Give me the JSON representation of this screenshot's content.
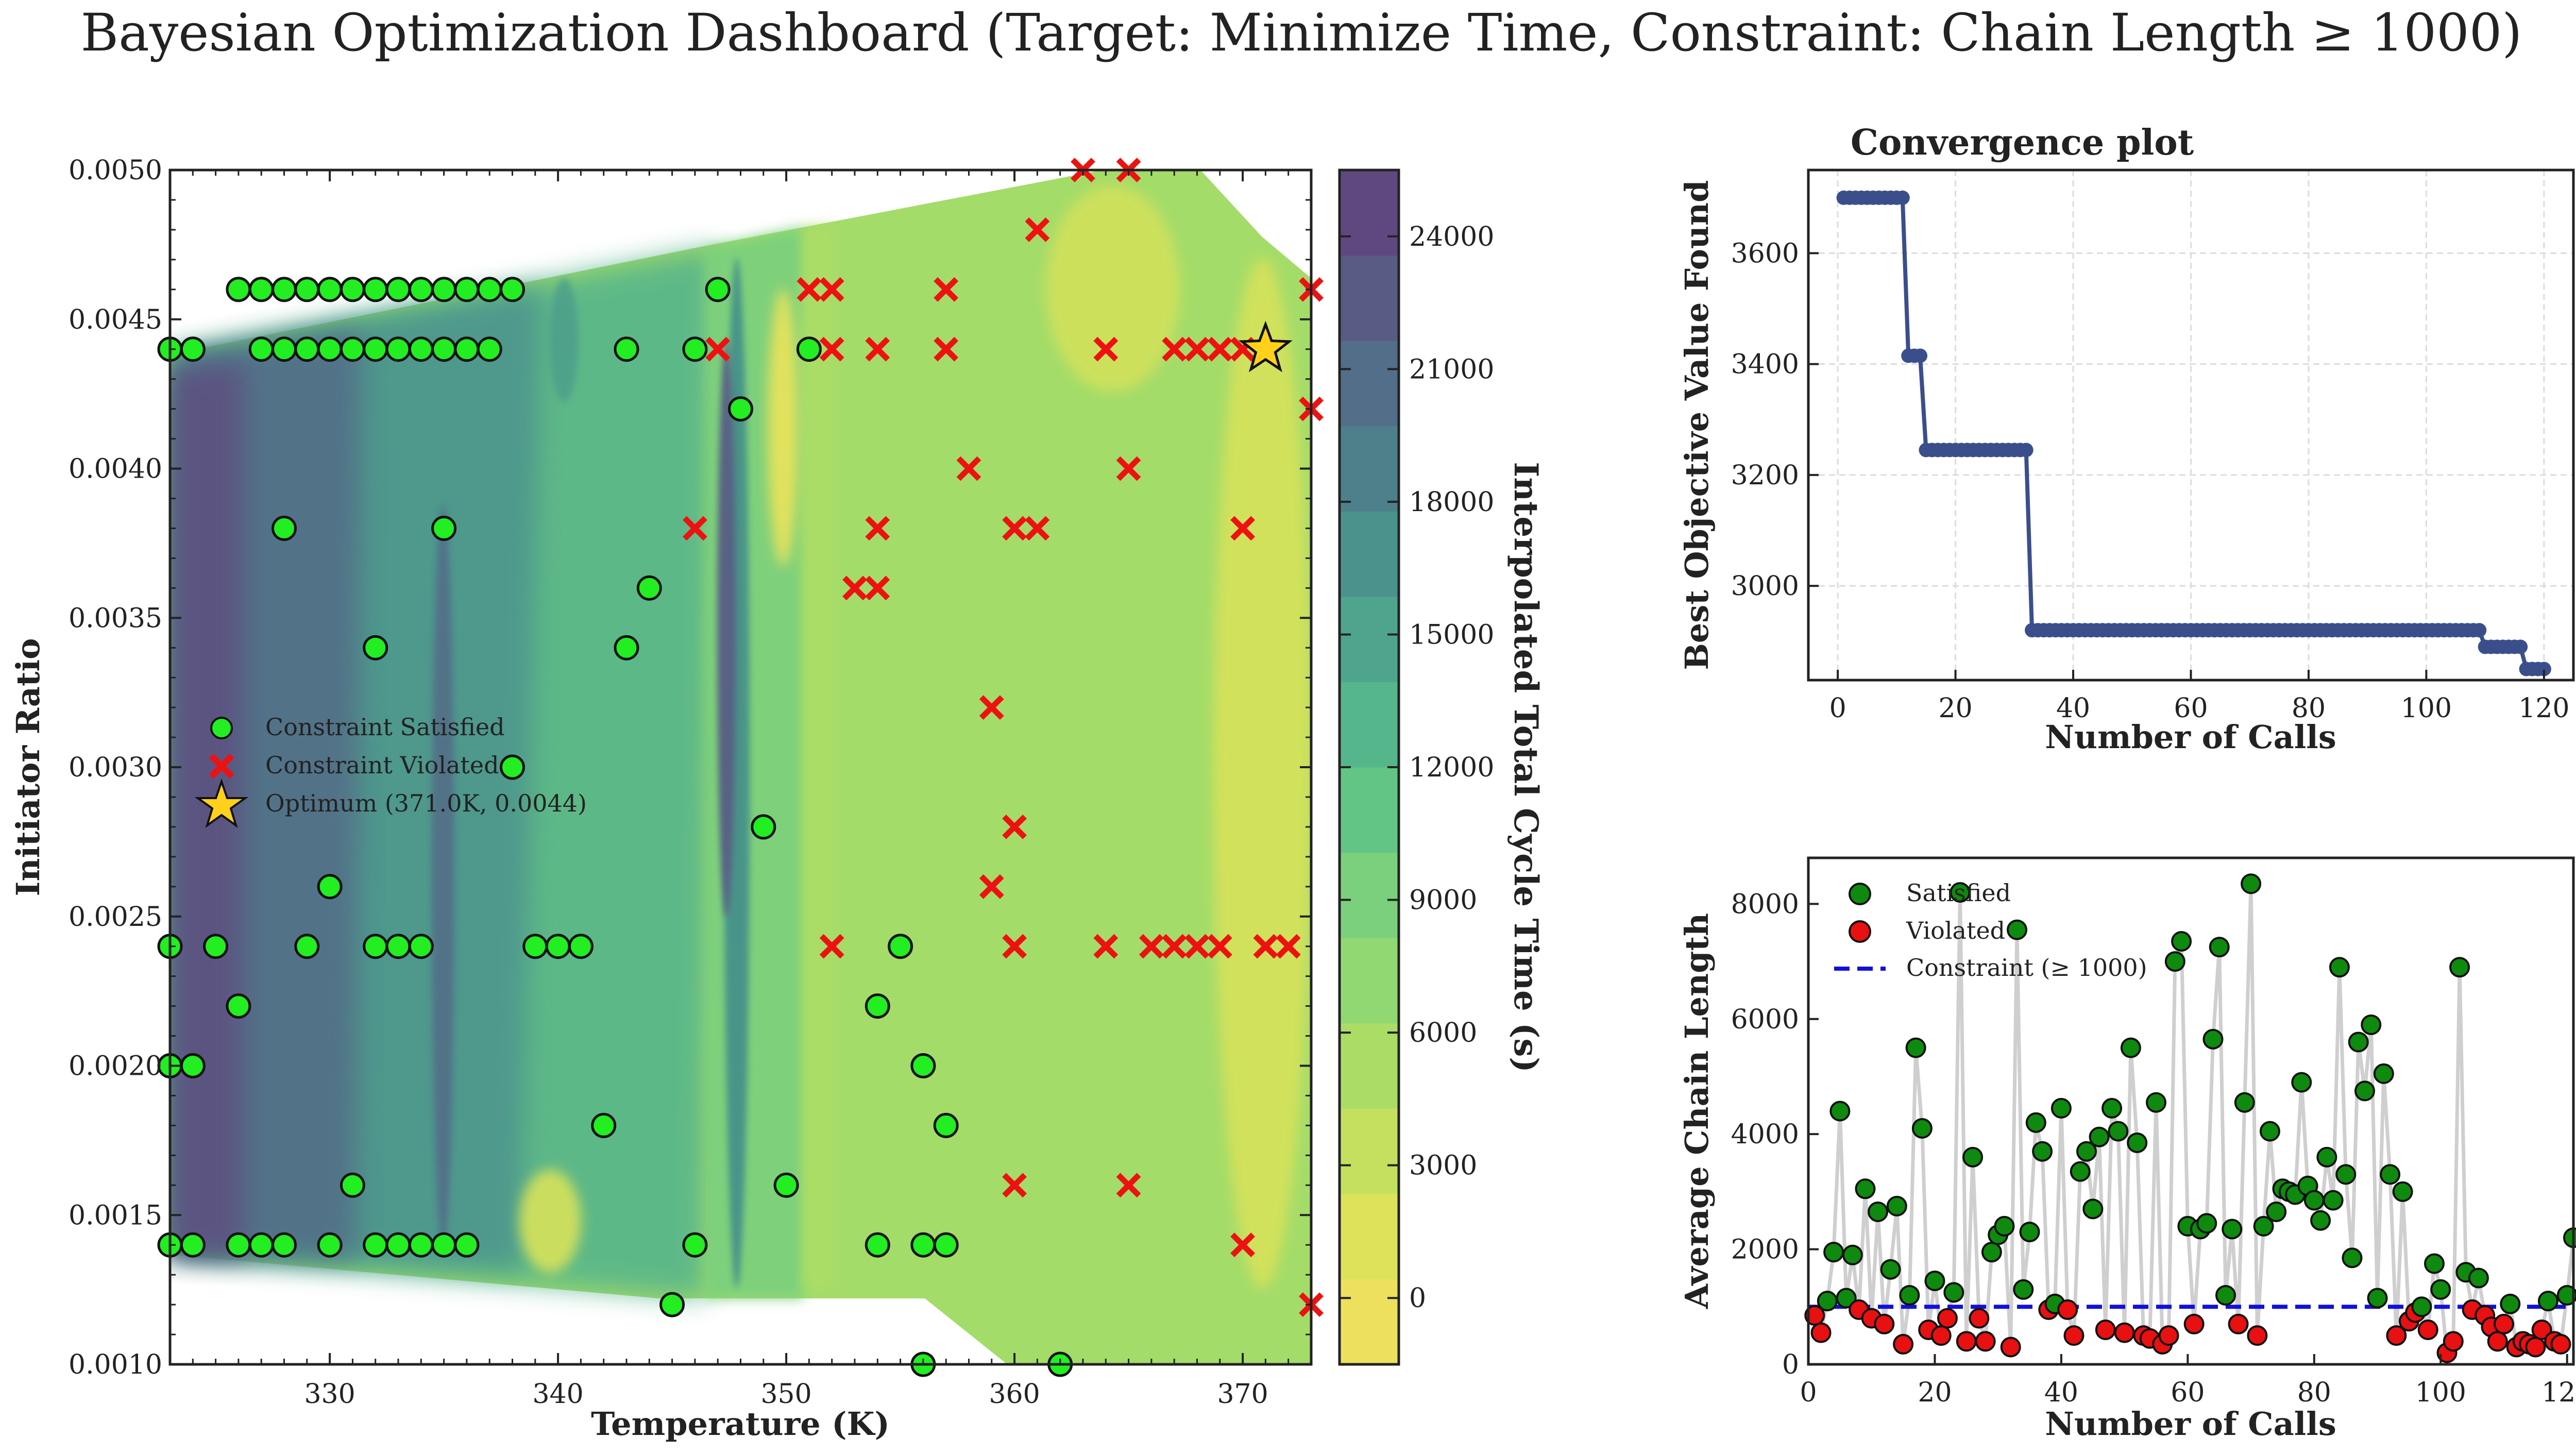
{
  "suptitle": "Bayesian Optimization Dashboard (Target: Minimize Time, Constraint: Chain Length ≥ 1000)",
  "colors": {
    "satisfied_green": "#22ee22",
    "violated_red": "#ee1111",
    "star_gold": "#ffd11a",
    "convergence_line": "#3b4e8c",
    "chain_green": "#0e8a0e",
    "chain_red": "#e81010",
    "constraint_blue": "#1010dd",
    "trace_gray": "#cfcfcf",
    "grid_gray": "#dcdcdc"
  },
  "chart_data": [
    {
      "id": "contour",
      "type": "contour-scatter",
      "xlabel": "Temperature (K)",
      "ylabel": "Initiator Ratio",
      "xlim": [
        323,
        373
      ],
      "ylim": [
        0.001,
        0.005
      ],
      "xticks": [
        330,
        340,
        350,
        360,
        370
      ],
      "xtick_labels": [
        "330",
        "340",
        "350",
        "360",
        "370"
      ],
      "yticks": [
        0.001,
        0.0015,
        0.002,
        0.0025,
        0.003,
        0.0035,
        0.004,
        0.0045,
        0.005
      ],
      "ytick_labels": [
        "0.0010",
        "0.0015",
        "0.0020",
        "0.0025",
        "0.0030",
        "0.0035",
        "0.0040",
        "0.0045",
        "0.0050"
      ],
      "colorbar": {
        "label": "Interpolated Total Cycle Time (s)",
        "range": [
          -1500,
          25500
        ],
        "ticks": [
          0,
          3000,
          6000,
          9000,
          12000,
          15000,
          18000,
          21000,
          24000
        ],
        "tick_labels": [
          "0",
          "3000",
          "6000",
          "9000",
          "12000",
          "15000",
          "18000",
          "21000",
          "24000"
        ],
        "levels": [
          "#ede05c",
          "#dde25a",
          "#c4e05e",
          "#abdd66",
          "#92d872",
          "#7ad07d",
          "#62c585",
          "#55b68b",
          "#4ea48c",
          "#4b928d",
          "#4d808b",
          "#526e88",
          "#585b84",
          "#5f487f"
        ]
      },
      "legend": {
        "entries": [
          "Constraint Satisfied",
          "Constraint Violated",
          "Optimum (371.0K, 0.0044)"
        ],
        "position": "center-left"
      },
      "satisfied_points": [
        [
          323,
          0.0044
        ],
        [
          324,
          0.0044
        ],
        [
          323,
          0.0024
        ],
        [
          323,
          0.002
        ],
        [
          324,
          0.002
        ],
        [
          323,
          0.0014
        ],
        [
          324,
          0.0014
        ],
        [
          326,
          0.0046
        ],
        [
          327,
          0.0046
        ],
        [
          328,
          0.0046
        ],
        [
          329,
          0.0046
        ],
        [
          330,
          0.0046
        ],
        [
          331,
          0.0046
        ],
        [
          332,
          0.0046
        ],
        [
          333,
          0.0046
        ],
        [
          334,
          0.0046
        ],
        [
          335,
          0.0046
        ],
        [
          336,
          0.0046
        ],
        [
          337,
          0.0046
        ],
        [
          338,
          0.0046
        ],
        [
          327,
          0.0044
        ],
        [
          328,
          0.0044
        ],
        [
          329,
          0.0044
        ],
        [
          330,
          0.0044
        ],
        [
          331,
          0.0044
        ],
        [
          332,
          0.0044
        ],
        [
          333,
          0.0044
        ],
        [
          334,
          0.0044
        ],
        [
          335,
          0.0044
        ],
        [
          336,
          0.0044
        ],
        [
          337,
          0.0044
        ],
        [
          328,
          0.0038
        ],
        [
          335,
          0.0038
        ],
        [
          332,
          0.0034
        ],
        [
          338,
          0.003
        ],
        [
          330,
          0.0026
        ],
        [
          326,
          0.0022
        ],
        [
          325,
          0.0024
        ],
        [
          329,
          0.0024
        ],
        [
          332,
          0.0024
        ],
        [
          333,
          0.0024
        ],
        [
          334,
          0.0024
        ],
        [
          339,
          0.0024
        ],
        [
          340,
          0.0024
        ],
        [
          341,
          0.0024
        ],
        [
          331,
          0.0016
        ],
        [
          326,
          0.0014
        ],
        [
          327,
          0.0014
        ],
        [
          328,
          0.0014
        ],
        [
          330,
          0.0014
        ],
        [
          332,
          0.0014
        ],
        [
          333,
          0.0014
        ],
        [
          334,
          0.0014
        ],
        [
          335,
          0.0014
        ],
        [
          336,
          0.0014
        ],
        [
          343,
          0.0044
        ],
        [
          346,
          0.0044
        ],
        [
          347,
          0.0046
        ],
        [
          348,
          0.0042
        ],
        [
          351,
          0.0044
        ],
        [
          344,
          0.0036
        ],
        [
          343,
          0.0034
        ],
        [
          349,
          0.0028
        ],
        [
          342,
          0.0018
        ],
        [
          350,
          0.0016
        ],
        [
          346,
          0.0014
        ],
        [
          345,
          0.0012
        ],
        [
          354,
          0.0022
        ],
        [
          355,
          0.0024
        ],
        [
          356,
          0.002
        ],
        [
          357,
          0.0018
        ],
        [
          354,
          0.0014
        ],
        [
          356,
          0.0014
        ],
        [
          357,
          0.0014
        ],
        [
          356,
          0.001
        ],
        [
          362,
          0.001
        ]
      ],
      "violated_points": [
        [
          351,
          0.0046
        ],
        [
          352,
          0.0046
        ],
        [
          357,
          0.0046
        ],
        [
          361,
          0.0048
        ],
        [
          363,
          0.005
        ],
        [
          365,
          0.005
        ],
        [
          347,
          0.0044
        ],
        [
          352,
          0.0044
        ],
        [
          354,
          0.0044
        ],
        [
          357,
          0.0044
        ],
        [
          364,
          0.0044
        ],
        [
          367,
          0.0044
        ],
        [
          368,
          0.0044
        ],
        [
          369,
          0.0044
        ],
        [
          370,
          0.0044
        ],
        [
          373,
          0.0046
        ],
        [
          373,
          0.0042
        ],
        [
          358,
          0.004
        ],
        [
          365,
          0.004
        ],
        [
          346,
          0.0038
        ],
        [
          354,
          0.0038
        ],
        [
          360,
          0.0038
        ],
        [
          361,
          0.0038
        ],
        [
          370,
          0.0038
        ],
        [
          353,
          0.0036
        ],
        [
          354,
          0.0036
        ],
        [
          359,
          0.0032
        ],
        [
          360,
          0.0028
        ],
        [
          359,
          0.0026
        ],
        [
          352,
          0.0024
        ],
        [
          360,
          0.0024
        ],
        [
          364,
          0.0024
        ],
        [
          366,
          0.0024
        ],
        [
          367,
          0.0024
        ],
        [
          368,
          0.0024
        ],
        [
          369,
          0.0024
        ],
        [
          371,
          0.0024
        ],
        [
          372,
          0.0024
        ],
        [
          360,
          0.0016
        ],
        [
          365,
          0.0016
        ],
        [
          370,
          0.0014
        ],
        [
          373,
          0.0012
        ]
      ],
      "optimum": [
        371.0,
        0.0044
      ]
    },
    {
      "id": "convergence",
      "type": "line",
      "title": "Convergence plot",
      "xlabel": "Number of Calls",
      "ylabel": "Best Objective Value Found",
      "xlim": [
        -5,
        125
      ],
      "ylim": [
        2830,
        3750
      ],
      "xticks": [
        0,
        20,
        40,
        60,
        80,
        100,
        120
      ],
      "xtick_labels": [
        "0",
        "20",
        "40",
        "60",
        "80",
        "100",
        "120"
      ],
      "yticks": [
        3000,
        3200,
        3400,
        3600
      ],
      "ytick_labels": [
        "3000",
        "3200",
        "3400",
        "3600"
      ],
      "steps": [
        {
          "from": 1,
          "to": 11,
          "value": 3700
        },
        {
          "from": 12,
          "to": 14,
          "value": 3415
        },
        {
          "from": 15,
          "to": 32,
          "value": 3245
        },
        {
          "from": 33,
          "to": 109,
          "value": 2920
        },
        {
          "from": 110,
          "to": 116,
          "value": 2890
        },
        {
          "from": 117,
          "to": 120,
          "value": 2850
        }
      ]
    },
    {
      "id": "chain",
      "type": "scatter",
      "xlabel": "Number of Calls",
      "ylabel": "Average Chain Length",
      "xlim": [
        0,
        121
      ],
      "ylim": [
        0,
        8800
      ],
      "xticks": [
        0,
        20,
        40,
        60,
        80,
        100,
        120
      ],
      "xtick_labels": [
        "0",
        "20",
        "40",
        "60",
        "80",
        "100",
        "120"
      ],
      "yticks": [
        0,
        2000,
        4000,
        6000,
        8000
      ],
      "ytick_labels": [
        "0",
        "2000",
        "4000",
        "6000",
        "8000"
      ],
      "constraint": 1000,
      "legend": {
        "entries": [
          "Satisfied",
          "Violated",
          "Constraint (≥ 1000)"
        ],
        "position": "top-left"
      },
      "values": [
        850,
        550,
        1100,
        1950,
        4400,
        1150,
        1900,
        950,
        3050,
        800,
        2650,
        700,
        1650,
        2750,
        350,
        1200,
        5500,
        4100,
        600,
        1450,
        500,
        800,
        1250,
        8200,
        400,
        3600,
        800,
        400,
        1950,
        2250,
        2400,
        300,
        7550,
        1300,
        2300,
        4200,
        3700,
        950,
        1050,
        4450,
        950,
        500,
        3350,
        3700,
        2700,
        3950,
        600,
        4450,
        4050,
        550,
        5500,
        3850,
        500,
        450,
        4550,
        350,
        500,
        7000,
        7350,
        2400,
        700,
        2350,
        2450,
        5650,
        7250,
        1200,
        2350,
        700,
        4550,
        8350,
        500,
        2400,
        4050,
        2650,
        3050,
        3000,
        2950,
        4900,
        3100,
        2850,
        2500,
        3600,
        2850,
        6900,
        3300,
        1850,
        5600,
        4750,
        5900,
        1150,
        5050,
        3300,
        500,
        3000,
        750,
        900,
        1000,
        600,
        1750,
        1300,
        200,
        400,
        6900,
        1600,
        950,
        1500,
        850,
        650,
        400,
        700,
        1050,
        300,
        400,
        350,
        300,
        600,
        1100,
        400,
        350,
        1200,
        2200
      ]
    }
  ]
}
